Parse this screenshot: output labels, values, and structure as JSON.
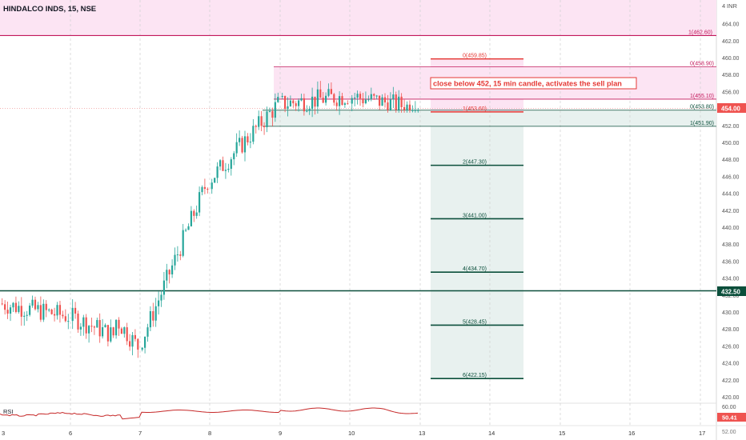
{
  "header": {
    "symbol": "HINDALCO INDS",
    "interval": "15",
    "exchange": "NSE",
    "currency": "INR",
    "currency_prefix": "4"
  },
  "annotation": {
    "text": "close below 452, 15 min candle, activates the sell plan",
    "color": "#e53935"
  },
  "rsi": {
    "label": "RSI",
    "value": "50.41",
    "axis_label": "60.00"
  },
  "price_badges": [
    {
      "text": "454.00",
      "color": "#ef5350"
    },
    {
      "text": "432.50",
      "color": "#0b4f3b"
    },
    {
      "text": "52.00",
      "color": "#777777"
    }
  ],
  "colors": {
    "up": "#26a69a",
    "down": "#ef5350",
    "upper_fib": "#c2185b",
    "lower_fib": "#0b4f3b",
    "pink_zone": "#fce4f3",
    "green_zone": "#e8f1ef"
  },
  "chart_data": {
    "type": "candlestick",
    "title": "HINDALCO INDS, 15, NSE",
    "y_ticks": [
      420,
      422,
      424,
      426,
      428,
      430,
      432,
      434,
      436,
      438,
      440,
      442,
      444,
      446,
      448,
      450,
      452,
      454,
      456,
      458,
      460,
      462,
      464
    ],
    "ylim": [
      419.2,
      466.2
    ],
    "x_ticks": [
      "3",
      "6",
      "7",
      "8",
      "9",
      "10",
      "13",
      "14",
      "15",
      "16",
      "17"
    ],
    "horizontal_lines": [
      {
        "price": 462.6,
        "label": "1(462.60)"
      },
      {
        "price": 432.5,
        "label": "432.50"
      }
    ],
    "fib_upper": [
      {
        "price": 459.85,
        "label": "0(459.85)"
      },
      {
        "price": 458.9,
        "label": "0(458.90)"
      },
      {
        "price": 455.1,
        "label": "1(455.10)"
      },
      {
        "price": 453.8,
        "label": "0(453.80)"
      },
      {
        "price": 453.6,
        "label": "1(453.60)"
      },
      {
        "price": 451.9,
        "label": "1(451.90)"
      }
    ],
    "fib_targets": [
      {
        "price": 447.3,
        "label": "2(447.30)"
      },
      {
        "price": 441.0,
        "label": "3(441.00)"
      },
      {
        "price": 434.7,
        "label": "4(434.70)"
      },
      {
        "price": 428.45,
        "label": "5(428.45)"
      },
      {
        "price": 422.15,
        "label": "6(422.15)"
      }
    ],
    "last_price": 454.0,
    "days": [
      {
        "day": "3",
        "open": 431.0,
        "close": 429.5,
        "low": 427.5,
        "high": 432.8
      },
      {
        "day": "6",
        "open": 429.5,
        "close": 426.0,
        "low": 424.0,
        "high": 433.2
      },
      {
        "day": "7",
        "open": 426.0,
        "close": 445.5,
        "low": 420.0,
        "high": 446.0
      },
      {
        "day": "8",
        "open": 445.5,
        "close": 454.5,
        "low": 441.5,
        "high": 458.8
      },
      {
        "day": "9",
        "open": 454.5,
        "close": 455.5,
        "low": 452.5,
        "high": 459.0
      },
      {
        "day": "10",
        "open": 455.5,
        "close": 454.0,
        "low": 453.5,
        "high": 461.0
      }
    ]
  }
}
